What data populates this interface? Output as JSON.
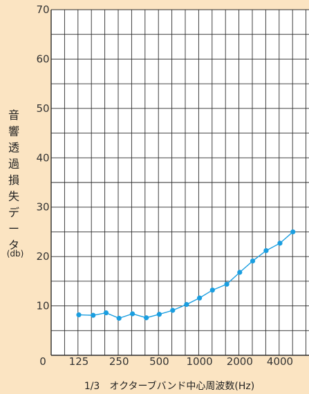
{
  "chart_data": {
    "type": "line",
    "title": "",
    "ylabel": "音響透過損失データ",
    "ylabel_unit": "(db)",
    "xlabel": "1/3　オクターブバンド中心周波数(Hz)",
    "ylim": [
      0,
      70
    ],
    "yticks": [
      10,
      20,
      30,
      40,
      50,
      60,
      70
    ],
    "origin_label": "0",
    "xtick_labels": [
      "125",
      "250",
      "500",
      "1000",
      "2000",
      "4000"
    ],
    "grid": true,
    "series": [
      {
        "color": "#1a9ee0",
        "x": [
          125,
          160,
          200,
          250,
          315,
          400,
          500,
          630,
          800,
          1000,
          1250,
          1600,
          2000,
          2500,
          3150,
          4000,
          5000
        ],
        "values": [
          8.2,
          8.1,
          8.6,
          7.5,
          8.4,
          7.6,
          8.3,
          9.1,
          10.3,
          11.6,
          13.2,
          14.4,
          16.8,
          19.1,
          21.2,
          22.7,
          25.0
        ]
      }
    ]
  }
}
